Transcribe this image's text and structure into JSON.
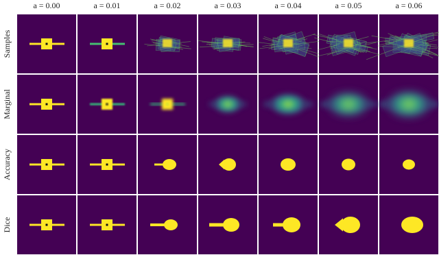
{
  "columns": [
    "a = 0.00",
    "a = 0.01",
    "a = 0.02",
    "a = 0.03",
    "a = 0.04",
    "a = 0.05",
    "a = 0.06"
  ],
  "rows": [
    "Samples",
    "Marginal",
    "Accuracy",
    "Dice"
  ]
}
